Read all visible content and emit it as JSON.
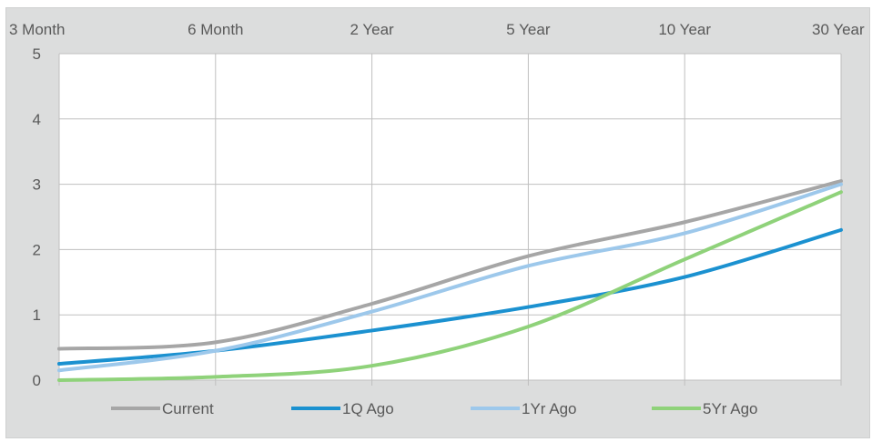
{
  "chart_data": {
    "type": "line",
    "x": [
      "3 Month",
      "6 Month",
      "2 Year",
      "5 Year",
      "10 Year",
      "30 Year"
    ],
    "ylim": [
      0,
      5
    ],
    "yticks": [
      0,
      1,
      2,
      3,
      4,
      5
    ],
    "grid": true,
    "legend_position": "bottom",
    "series": [
      {
        "name": "Current",
        "color": "#a6a6a6",
        "values": [
          0.48,
          0.58,
          1.17,
          1.9,
          2.42,
          3.05
        ]
      },
      {
        "name": "1Q Ago",
        "color": "#1b91d0",
        "values": [
          0.25,
          0.45,
          0.76,
          1.12,
          1.58,
          2.3
        ]
      },
      {
        "name": "1Yr Ago",
        "color": "#9dc8eb",
        "values": [
          0.15,
          0.45,
          1.05,
          1.75,
          2.25,
          3.0
        ]
      },
      {
        "name": "5Yr Ago",
        "color": "#8fd27a",
        "values": [
          0.0,
          0.05,
          0.22,
          0.82,
          1.85,
          2.88
        ]
      }
    ]
  }
}
